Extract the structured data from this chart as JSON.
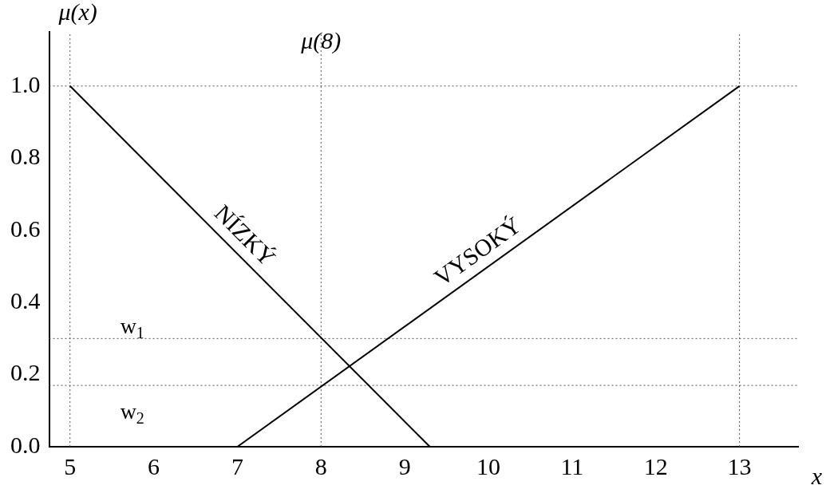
{
  "chart_data": {
    "type": "line",
    "xlabel": "x",
    "ylabel": "μ(x)",
    "xlim": [
      4.75,
      13.7
    ],
    "xticks": [
      5,
      6,
      7,
      8,
      9,
      10,
      11,
      12,
      13
    ],
    "ylim": [
      0,
      1.15
    ],
    "yticks": [
      {
        "value": 0,
        "label": "0.0"
      },
      {
        "value": 0.2,
        "label": "0.2"
      },
      {
        "value": 0.4,
        "label": "0.4"
      },
      {
        "value": 0.6,
        "label": "0.6"
      },
      {
        "value": 0.8,
        "label": "0.8"
      },
      {
        "value": 1,
        "label": "1.0"
      }
    ],
    "series": [
      {
        "name": "NÍZKÝ",
        "color": "#000000",
        "x": [
          5,
          9.3
        ],
        "values": [
          1,
          0
        ]
      },
      {
        "name": "VYSOKÝ",
        "color": "#000000",
        "x": [
          7,
          13
        ],
        "values": [
          0,
          1
        ]
      }
    ],
    "ref_lines": [
      {
        "axis": "x",
        "value": 5,
        "line_style": "dotted"
      },
      {
        "axis": "x",
        "value": 8,
        "line_style": "dotted"
      },
      {
        "axis": "x",
        "value": 13,
        "line_style": "dotted"
      },
      {
        "axis": "y",
        "value": 1,
        "line_style": "dotted"
      },
      {
        "axis": "y",
        "value": 0.3,
        "label": "w$_{1}$",
        "line_style": "dotted"
      },
      {
        "axis": "y",
        "value": 0.17,
        "label": "w$_{2}$",
        "line_style": "dotted"
      }
    ],
    "annotations": [
      {
        "text": "μ(8)",
        "x": 8,
        "y": 1
      }
    ],
    "grid": false,
    "legend": false,
    "marker": "none",
    "line_style": "solid"
  }
}
